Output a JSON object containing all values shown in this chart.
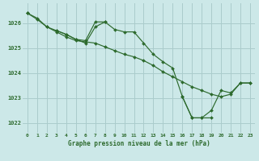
{
  "background_color": "#cce8e8",
  "grid_color": "#aacccc",
  "line_color": "#2d6a2d",
  "xlabel": "Graphe pression niveau de la mer (hPa)",
  "ylim": [
    1021.6,
    1026.8
  ],
  "xlim": [
    -0.5,
    23.5
  ],
  "yticks": [
    1022,
    1023,
    1024,
    1025,
    1026
  ],
  "xticks": [
    0,
    1,
    2,
    3,
    4,
    5,
    6,
    7,
    8,
    9,
    10,
    11,
    12,
    13,
    14,
    15,
    16,
    17,
    18,
    19,
    20,
    21,
    22,
    23
  ],
  "series": [
    [
      1026.4,
      1026.2,
      1025.85,
      1025.7,
      1025.55,
      1025.35,
      1025.3,
      1026.05,
      1026.05,
      1025.75,
      1025.65,
      1025.65,
      1025.2,
      1024.75,
      1024.45,
      1024.2,
      1023.05,
      1022.2,
      1022.2,
      1022.2,
      null,
      null,
      null,
      null
    ],
    [
      null,
      null,
      null,
      1025.7,
      1025.55,
      1025.35,
      1025.2,
      1025.85,
      1026.05,
      null,
      null,
      null,
      null,
      null,
      null,
      null,
      null,
      null,
      null,
      null,
      null,
      null,
      null,
      null
    ],
    [
      1026.4,
      1026.15,
      1025.85,
      1025.65,
      1025.45,
      1025.3,
      1025.25,
      1025.2,
      1025.05,
      1024.9,
      1024.75,
      1024.65,
      1024.5,
      1024.3,
      1024.05,
      1023.85,
      1023.65,
      1023.45,
      1023.3,
      1023.15,
      1023.05,
      1023.15,
      1023.6,
      1023.6
    ],
    [
      1026.4,
      null,
      null,
      null,
      null,
      null,
      null,
      null,
      null,
      null,
      null,
      null,
      null,
      null,
      null,
      null,
      1023.05,
      1022.2,
      1022.2,
      1022.5,
      1023.3,
      1023.2,
      1023.6,
      1023.6
    ]
  ]
}
